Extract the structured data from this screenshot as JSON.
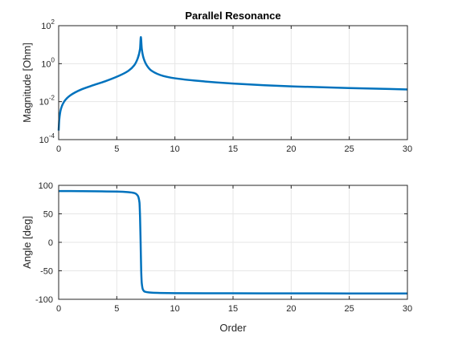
{
  "chart_data": [
    {
      "type": "line",
      "title": "Parallel Resonance",
      "xlabel": "",
      "ylabel": "Magnitude [Ohm]",
      "yscale": "log",
      "xlim": [
        0,
        30
      ],
      "ylim": [
        0.0001,
        100
      ],
      "grid": true,
      "color": "#0072BD",
      "x_ticks": [
        "0",
        "5",
        "10",
        "15",
        "20",
        "25",
        "30"
      ],
      "y_ticks": [
        {
          "value": 0.0001,
          "base": "10",
          "exp": "-4"
        },
        {
          "value": 0.01,
          "base": "10",
          "exp": "-2"
        },
        {
          "value": 1,
          "base": "10",
          "exp": "0"
        },
        {
          "value": 100,
          "base": "10",
          "exp": "2"
        }
      ],
      "series": [
        {
          "x": [
            0.0,
            0.05,
            0.2,
            0.5,
            1.0,
            2.0,
            3.0,
            4.0,
            5.0,
            6.0,
            6.5,
            6.8,
            7.0,
            7.07,
            7.15,
            7.3,
            7.6,
            8.0,
            9.0,
            10.0,
            12.0,
            15.0,
            20.0,
            25.0,
            30.0
          ],
          "y": [
            0.0003,
            0.0011,
            0.0042,
            0.0106,
            0.0213,
            0.045,
            0.074,
            0.118,
            0.204,
            0.42,
            0.82,
            1.9,
            6.0,
            25.0,
            6.0,
            2.0,
            0.78,
            0.42,
            0.225,
            0.17,
            0.124,
            0.09,
            0.064,
            0.052,
            0.044
          ]
        }
      ]
    },
    {
      "type": "line",
      "title": "",
      "xlabel": "Order",
      "ylabel": "Angle [deg]",
      "xlim": [
        0,
        30
      ],
      "ylim": [
        -100,
        100
      ],
      "grid": true,
      "color": "#0072BD",
      "x_ticks": [
        "0",
        "5",
        "10",
        "15",
        "20",
        "25",
        "30"
      ],
      "y_ticks": [
        "100",
        "50",
        "0",
        "-50",
        "-100"
      ],
      "series": [
        {
          "x": [
            0.0,
            1.0,
            3.0,
            5.0,
            6.0,
            6.5,
            6.8,
            6.95,
            7.0,
            7.05,
            7.1,
            7.15,
            7.25,
            7.4,
            7.8,
            8.5,
            10.0,
            15.0,
            20.0,
            25.0,
            30.0
          ],
          "y": [
            90.0,
            89.9,
            89.6,
            89.0,
            88.0,
            86.5,
            82.0,
            70.0,
            45.0,
            0.0,
            -50.0,
            -72.0,
            -83.0,
            -86.5,
            -88.0,
            -88.8,
            -89.2,
            -89.5,
            -89.6,
            -89.7,
            -89.7
          ]
        }
      ]
    }
  ]
}
